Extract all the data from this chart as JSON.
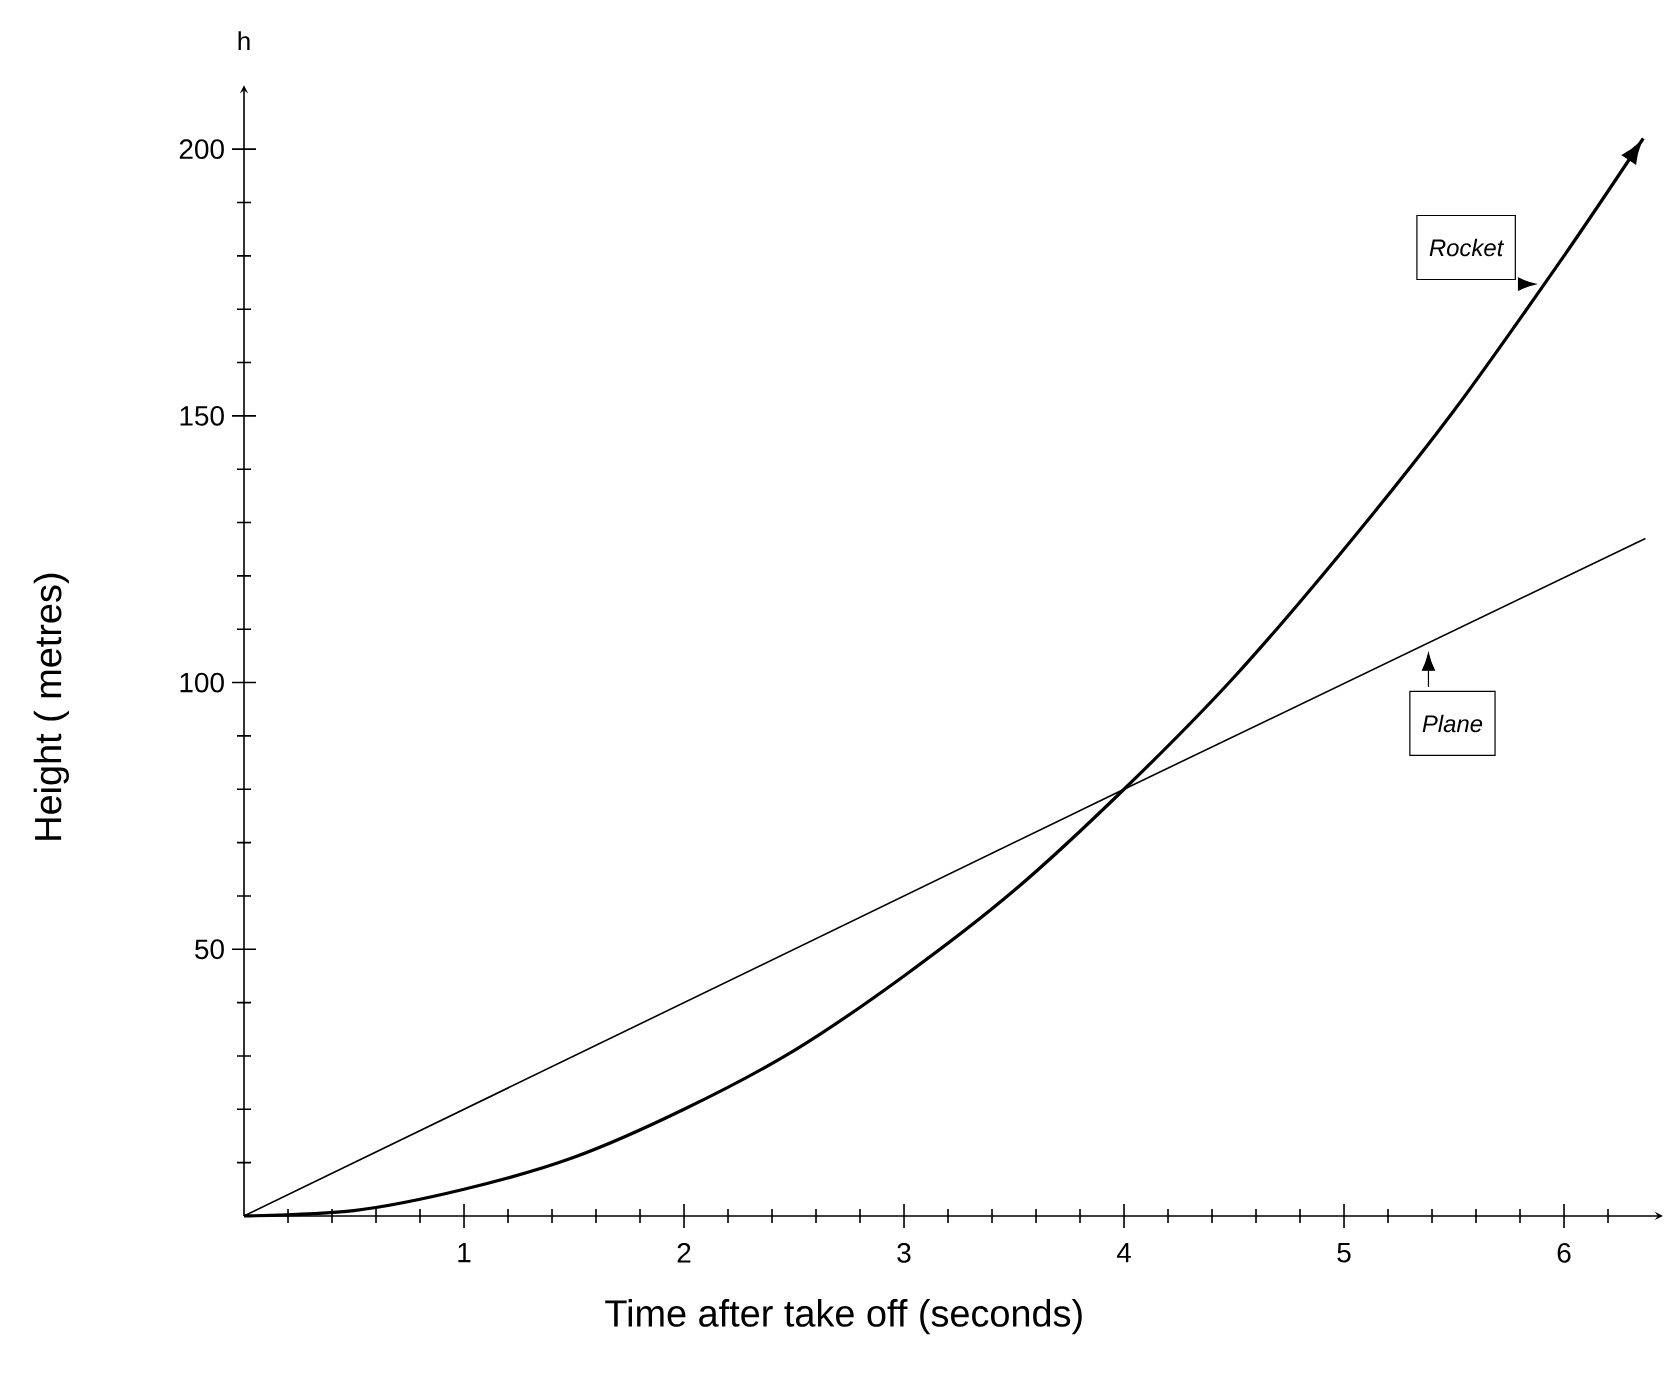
{
  "chart_data": {
    "type": "line",
    "xlabel": "Time after take off (seconds)",
    "ylabel": "Height ( metres)",
    "annotations": [
      "h"
    ],
    "xlim": [
      0,
      6.45
    ],
    "ylim": [
      0,
      212
    ],
    "xticks": [
      {
        "value": 0.2,
        "label": null
      },
      {
        "value": 0.4,
        "label": null
      },
      {
        "value": 0.6,
        "label": null
      },
      {
        "value": 0.8,
        "label": null
      },
      1,
      {
        "value": 1.2,
        "label": null
      },
      {
        "value": 1.4,
        "label": null
      },
      {
        "value": 1.6,
        "label": null
      },
      {
        "value": 1.8,
        "label": null
      },
      2,
      {
        "value": 2.2,
        "label": null
      },
      {
        "value": 2.4,
        "label": null
      },
      {
        "value": 2.6,
        "label": null
      },
      {
        "value": 2.8,
        "label": null
      },
      3,
      {
        "value": 3.2,
        "label": null
      },
      {
        "value": 3.4,
        "label": null
      },
      {
        "value": 3.6,
        "label": null
      },
      {
        "value": 3.8,
        "label": null
      },
      4,
      {
        "value": 4.2,
        "label": null
      },
      {
        "value": 4.4,
        "label": null
      },
      {
        "value": 4.6,
        "label": null
      },
      {
        "value": 4.8,
        "label": null
      },
      5,
      {
        "value": 5.2,
        "label": null
      },
      {
        "value": 5.4,
        "label": null
      },
      {
        "value": 5.6,
        "label": null
      },
      {
        "value": 5.8,
        "label": null
      },
      6,
      {
        "value": 6.2,
        "label": null
      }
    ],
    "yticks": [
      {
        "value": 10,
        "label": null
      },
      {
        "value": 20,
        "label": null
      },
      {
        "value": 30,
        "label": null
      },
      {
        "value": 40,
        "label": null
      },
      50,
      {
        "value": 60,
        "label": null
      },
      {
        "value": 70,
        "label": null
      },
      {
        "value": 80,
        "label": null
      },
      {
        "value": 90,
        "label": null
      },
      100,
      {
        "value": 110,
        "label": null
      },
      {
        "value": 120,
        "label": null
      },
      {
        "value": 130,
        "label": null
      },
      {
        "value": 140,
        "label": null
      },
      150,
      {
        "value": 160,
        "label": null
      },
      {
        "value": 170,
        "label": null
      },
      {
        "value": 180,
        "label": null
      },
      {
        "value": 190,
        "label": null
      },
      200
    ],
    "grid": false,
    "marker": "none",
    "line_style": "solid",
    "series": [
      {
        "name": "Rocket",
        "color": "#000000",
        "x": [
          0,
          0.5,
          1,
          1.5,
          2,
          2.5,
          3,
          3.5,
          4,
          4.5,
          5,
          5.5,
          6,
          6.36
        ],
        "values": [
          0,
          1,
          5,
          11,
          20,
          31,
          45,
          61,
          80,
          101,
          125,
          151,
          180,
          202
        ]
      },
      {
        "name": "Plane",
        "color": "#000000",
        "x": [
          0,
          4,
          6.37
        ],
        "values": [
          0,
          80,
          127
        ]
      }
    ]
  }
}
